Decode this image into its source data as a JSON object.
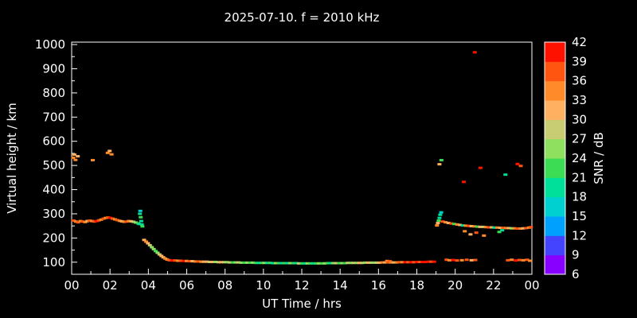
{
  "title": "2025-07-10. f = 2010 kHz",
  "chart_data": {
    "type": "scatter",
    "title": "2025-07-10. f = 2010 kHz",
    "xlabel": "UT Time / hrs",
    "ylabel": "Virtual height / km",
    "xlim": [
      0,
      24
    ],
    "ylim": [
      50,
      1010
    ],
    "x_ticks": {
      "values": [
        0,
        2,
        4,
        6,
        8,
        10,
        12,
        14,
        16,
        18,
        20,
        22,
        24
      ],
      "labels": [
        "00",
        "02",
        "04",
        "06",
        "08",
        "10",
        "12",
        "14",
        "16",
        "18",
        "20",
        "22",
        "00"
      ]
    },
    "y_ticks": [
      100,
      200,
      300,
      400,
      500,
      600,
      700,
      800,
      900,
      1000
    ],
    "color_scale": {
      "label": "SNR / dB",
      "min": 6,
      "max": 42,
      "step": 3,
      "tick_values": [
        6,
        9,
        12,
        15,
        18,
        21,
        24,
        27,
        30,
        33,
        36,
        39,
        42
      ],
      "colors": [
        "#8800ff",
        "#4444ff",
        "#00a0ff",
        "#00d0d0",
        "#00e09a",
        "#3ddc55",
        "#90e060",
        "#c8cc72",
        "#ffb060",
        "#ff8a2a",
        "#ff5511",
        "#ff1100"
      ]
    },
    "points": [
      [
        0.1,
        272,
        36
      ],
      [
        0.22,
        268,
        33
      ],
      [
        0.34,
        265,
        36
      ],
      [
        0.46,
        270,
        33
      ],
      [
        0.58,
        268,
        36
      ],
      [
        0.7,
        266,
        33
      ],
      [
        0.82,
        270,
        30
      ],
      [
        0.94,
        272,
        36
      ],
      [
        1.06,
        270,
        33
      ],
      [
        1.18,
        268,
        36
      ],
      [
        1.3,
        270,
        39
      ],
      [
        1.42,
        273,
        36
      ],
      [
        1.54,
        276,
        33
      ],
      [
        1.66,
        280,
        36
      ],
      [
        1.78,
        283,
        33
      ],
      [
        1.9,
        285,
        36
      ],
      [
        2.02,
        283,
        39
      ],
      [
        2.14,
        280,
        36
      ],
      [
        2.26,
        277,
        33
      ],
      [
        2.38,
        274,
        36
      ],
      [
        2.5,
        271,
        33
      ],
      [
        2.62,
        269,
        30
      ],
      [
        2.74,
        267,
        33
      ],
      [
        2.86,
        268,
        36
      ],
      [
        2.98,
        270,
        33
      ],
      [
        3.1,
        269,
        30
      ],
      [
        3.22,
        267,
        27
      ],
      [
        3.34,
        264,
        24
      ],
      [
        3.46,
        261,
        21
      ],
      [
        3.52,
        258,
        18
      ],
      [
        3.56,
        300,
        18
      ],
      [
        3.58,
        312,
        15
      ],
      [
        3.6,
        286,
        21
      ],
      [
        3.63,
        270,
        18
      ],
      [
        3.66,
        256,
        18
      ],
      [
        3.69,
        248,
        21
      ],
      [
        0.08,
        532,
        33
      ],
      [
        0.14,
        545,
        30
      ],
      [
        0.2,
        523,
        33
      ],
      [
        0.32,
        538,
        30
      ],
      [
        1.1,
        522,
        33
      ],
      [
        1.88,
        552,
        33
      ],
      [
        1.98,
        560,
        30
      ],
      [
        2.08,
        546,
        33
      ],
      [
        3.78,
        192,
        30
      ],
      [
        3.88,
        185,
        33
      ],
      [
        3.98,
        178,
        30
      ],
      [
        4.08,
        170,
        27
      ],
      [
        4.18,
        162,
        24
      ],
      [
        4.28,
        154,
        24
      ],
      [
        4.38,
        146,
        21
      ],
      [
        4.48,
        139,
        24
      ],
      [
        4.58,
        132,
        27
      ],
      [
        4.68,
        126,
        30
      ],
      [
        4.78,
        120,
        30
      ],
      [
        4.88,
        115,
        33
      ],
      [
        4.98,
        111,
        33
      ],
      [
        5.1,
        108,
        36
      ],
      [
        5.25,
        107,
        39
      ],
      [
        5.4,
        107,
        36
      ],
      [
        5.55,
        106,
        33
      ],
      [
        5.7,
        106,
        36
      ],
      [
        5.85,
        105,
        39
      ],
      [
        6.0,
        105,
        33
      ],
      [
        6.15,
        104,
        36
      ],
      [
        6.3,
        104,
        30
      ],
      [
        6.45,
        103,
        33
      ],
      [
        6.6,
        103,
        36
      ],
      [
        6.75,
        102,
        33
      ],
      [
        6.9,
        102,
        30
      ],
      [
        7.05,
        102,
        30
      ],
      [
        7.2,
        101,
        27
      ],
      [
        7.35,
        101,
        30
      ],
      [
        7.5,
        101,
        24
      ],
      [
        7.65,
        100,
        27
      ],
      [
        7.8,
        100,
        30
      ],
      [
        7.95,
        100,
        27
      ],
      [
        8.1,
        100,
        24
      ],
      [
        8.25,
        99,
        27
      ],
      [
        8.4,
        99,
        21
      ],
      [
        8.55,
        99,
        24
      ],
      [
        8.7,
        99,
        27
      ],
      [
        8.85,
        98,
        24
      ],
      [
        9.0,
        98,
        21
      ],
      [
        9.15,
        98,
        24
      ],
      [
        9.3,
        98,
        21
      ],
      [
        9.45,
        98,
        24
      ],
      [
        9.6,
        97,
        21
      ],
      [
        9.75,
        97,
        18
      ],
      [
        9.9,
        97,
        21
      ],
      [
        10.05,
        97,
        24
      ],
      [
        10.2,
        97,
        18
      ],
      [
        10.35,
        97,
        21
      ],
      [
        10.5,
        96,
        18
      ],
      [
        10.65,
        96,
        24
      ],
      [
        10.8,
        96,
        21
      ],
      [
        10.95,
        96,
        18
      ],
      [
        11.1,
        96,
        21
      ],
      [
        11.25,
        96,
        18
      ],
      [
        11.4,
        96,
        24
      ],
      [
        11.55,
        96,
        21
      ],
      [
        11.7,
        96,
        18
      ],
      [
        11.85,
        95,
        27
      ],
      [
        12.0,
        95,
        21
      ],
      [
        12.15,
        95,
        18
      ],
      [
        12.3,
        95,
        24
      ],
      [
        12.45,
        95,
        21
      ],
      [
        12.6,
        95,
        18
      ],
      [
        12.75,
        95,
        21
      ],
      [
        12.9,
        95,
        24
      ],
      [
        13.05,
        95,
        21
      ],
      [
        13.2,
        95,
        24
      ],
      [
        13.35,
        96,
        21
      ],
      [
        13.5,
        96,
        18
      ],
      [
        13.65,
        96,
        24
      ],
      [
        13.8,
        96,
        27
      ],
      [
        13.95,
        96,
        21
      ],
      [
        14.1,
        96,
        24
      ],
      [
        14.25,
        96,
        21
      ],
      [
        14.4,
        97,
        27
      ],
      [
        14.55,
        97,
        24
      ],
      [
        14.7,
        97,
        27
      ],
      [
        14.85,
        97,
        24
      ],
      [
        15.0,
        97,
        30
      ],
      [
        15.15,
        97,
        27
      ],
      [
        15.3,
        98,
        24
      ],
      [
        15.45,
        98,
        30
      ],
      [
        15.6,
        98,
        27
      ],
      [
        15.75,
        98,
        24
      ],
      [
        15.9,
        98,
        27
      ],
      [
        16.05,
        98,
        30
      ],
      [
        16.2,
        99,
        33
      ],
      [
        16.35,
        99,
        30
      ],
      [
        16.45,
        105,
        33
      ],
      [
        16.5,
        99,
        36
      ],
      [
        16.6,
        104,
        36
      ],
      [
        16.65,
        99,
        33
      ],
      [
        16.8,
        99,
        30
      ],
      [
        16.95,
        99,
        33
      ],
      [
        17.1,
        100,
        36
      ],
      [
        17.25,
        100,
        33
      ],
      [
        17.4,
        100,
        39
      ],
      [
        17.55,
        100,
        36
      ],
      [
        17.7,
        100,
        39
      ],
      [
        17.85,
        100,
        36
      ],
      [
        18.0,
        101,
        39
      ],
      [
        18.15,
        101,
        36
      ],
      [
        18.3,
        101,
        39
      ],
      [
        18.45,
        101,
        42
      ],
      [
        18.6,
        102,
        39
      ],
      [
        18.75,
        102,
        36
      ],
      [
        18.9,
        102,
        39
      ],
      [
        19.05,
        252,
        33
      ],
      [
        19.1,
        262,
        30
      ],
      [
        19.14,
        272,
        21
      ],
      [
        19.18,
        283,
        18
      ],
      [
        19.22,
        296,
        18
      ],
      [
        19.27,
        306,
        15
      ],
      [
        19.35,
        268,
        36
      ],
      [
        19.5,
        265,
        33
      ],
      [
        19.65,
        262,
        30
      ],
      [
        19.8,
        260,
        36
      ],
      [
        19.95,
        258,
        21
      ],
      [
        20.1,
        256,
        33
      ],
      [
        20.25,
        254,
        30
      ],
      [
        20.4,
        252,
        18
      ],
      [
        20.55,
        251,
        33
      ],
      [
        20.7,
        250,
        36
      ],
      [
        20.85,
        249,
        30
      ],
      [
        21.0,
        248,
        33
      ],
      [
        21.15,
        247,
        21
      ],
      [
        21.3,
        246,
        30
      ],
      [
        21.45,
        246,
        27
      ],
      [
        21.6,
        245,
        33
      ],
      [
        21.75,
        244,
        36
      ],
      [
        21.9,
        244,
        30
      ],
      [
        22.05,
        243,
        18
      ],
      [
        22.2,
        243,
        33
      ],
      [
        22.35,
        242,
        30
      ],
      [
        22.5,
        242,
        36
      ],
      [
        22.65,
        241,
        33
      ],
      [
        22.8,
        241,
        30
      ],
      [
        22.95,
        240,
        24
      ],
      [
        23.1,
        240,
        33
      ],
      [
        23.25,
        239,
        36
      ],
      [
        23.4,
        239,
        33
      ],
      [
        23.55,
        240,
        30
      ],
      [
        23.7,
        241,
        36
      ],
      [
        23.85,
        243,
        33
      ],
      [
        23.95,
        245,
        36
      ],
      [
        20.5,
        228,
        33
      ],
      [
        20.8,
        215,
        30
      ],
      [
        21.1,
        222,
        36
      ],
      [
        21.5,
        210,
        33
      ],
      [
        22.3,
        225,
        21
      ],
      [
        22.45,
        232,
        18
      ],
      [
        19.55,
        110,
        36
      ],
      [
        19.7,
        108,
        33
      ],
      [
        19.9,
        109,
        39
      ],
      [
        20.1,
        107,
        36
      ],
      [
        20.35,
        108,
        33
      ],
      [
        20.6,
        110,
        36
      ],
      [
        20.85,
        108,
        30
      ],
      [
        21.05,
        109,
        36
      ],
      [
        22.75,
        108,
        36
      ],
      [
        22.95,
        110,
        33
      ],
      [
        23.15,
        107,
        39
      ],
      [
        23.35,
        109,
        36
      ],
      [
        23.55,
        108,
        33
      ],
      [
        23.75,
        110,
        36
      ],
      [
        23.9,
        106,
        33
      ],
      [
        19.18,
        505,
        30
      ],
      [
        19.28,
        522,
        21
      ],
      [
        20.45,
        432,
        39
      ],
      [
        21.02,
        968,
        39
      ],
      [
        21.32,
        490,
        42
      ],
      [
        22.62,
        462,
        18
      ],
      [
        23.25,
        506,
        39
      ],
      [
        23.42,
        498,
        36
      ]
    ]
  }
}
